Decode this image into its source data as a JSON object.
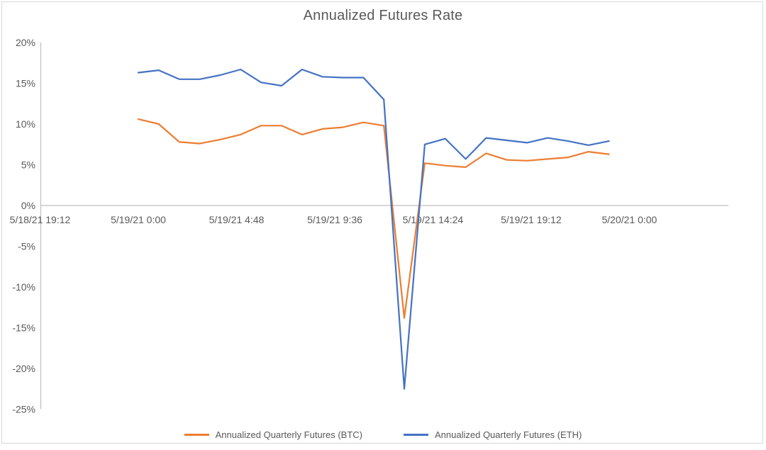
{
  "title": "Annualized Futures Rate",
  "colors": {
    "btc": "#ED7D31",
    "eth": "#4472C4",
    "axis": "#BFBFBF",
    "border": "#D9D9D9",
    "text": "#595959"
  },
  "legend": {
    "items": [
      {
        "label": "Annualized Quarterly Futures (BTC)",
        "color": "#ED7D31"
      },
      {
        "label": "Annualized Quarterly Futures (ETH)",
        "color": "#4472C4"
      }
    ]
  },
  "chart_data": {
    "type": "line",
    "title": "Annualized Futures Rate",
    "grid": false,
    "legend_position": "bottom",
    "x_axis": {
      "tick_labels": [
        "5/18/21 19:12",
        "5/19/21 0:00",
        "5/19/21 4:48",
        "5/19/21 9:36",
        "5/19/21 14:24",
        "5/19/21 19:12",
        "5/20/21 0:00"
      ],
      "tick_hours": [
        -4.8,
        0,
        4.8,
        9.6,
        14.4,
        19.2,
        24
      ],
      "unit": "hours since 5/19/21 0:00"
    },
    "y_axis": {
      "ticks": [
        20,
        15,
        10,
        5,
        0,
        -5,
        -10,
        -15,
        -20,
        -25
      ],
      "unit": "%",
      "ylim": [
        -25,
        20
      ]
    },
    "x_hours": [
      0,
      1,
      2,
      3,
      4,
      5,
      6,
      7,
      8,
      9,
      10,
      11,
      12,
      13,
      14,
      15,
      16,
      17,
      18,
      19,
      20,
      21,
      22,
      23
    ],
    "series": [
      {
        "name": "Annualized Quarterly Futures (BTC)",
        "color": "#ED7D31",
        "values_pct": [
          10.6,
          10.0,
          7.8,
          7.6,
          8.1,
          8.7,
          9.8,
          9.8,
          8.7,
          9.4,
          9.6,
          10.2,
          9.8,
          -13.8,
          5.2,
          4.9,
          4.7,
          6.4,
          5.6,
          5.5,
          5.7,
          5.9,
          6.6,
          6.3
        ]
      },
      {
        "name": "Annualized Quarterly Futures (ETH)",
        "color": "#4472C4",
        "values_pct": [
          16.3,
          16.6,
          15.5,
          15.5,
          16.0,
          16.7,
          15.1,
          14.7,
          16.7,
          15.8,
          15.7,
          15.7,
          13.0,
          -22.5,
          7.5,
          8.2,
          5.7,
          8.3,
          8.0,
          7.7,
          8.3,
          7.9,
          7.4,
          7.9
        ]
      }
    ]
  }
}
